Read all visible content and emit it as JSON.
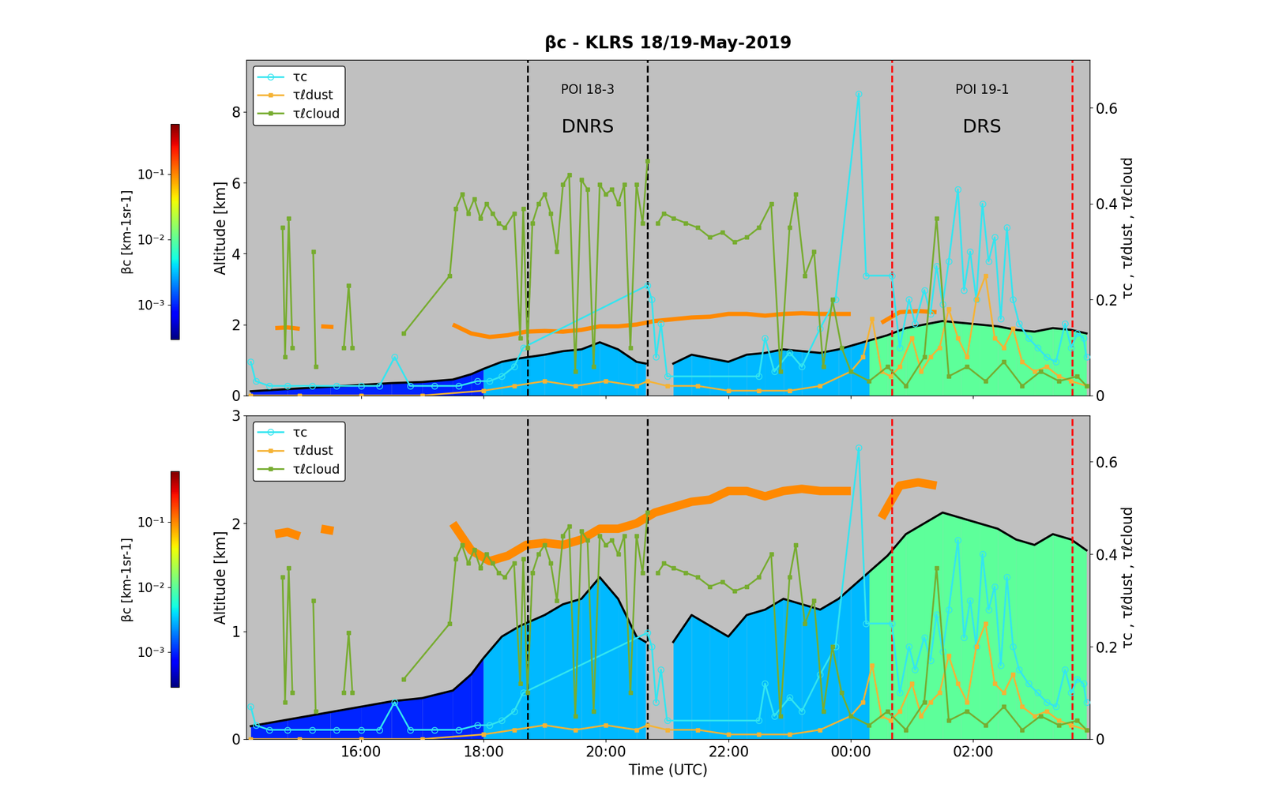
{
  "chart_data": {
    "type": "line",
    "title": "βc - KLRS 18/19-May-2019",
    "x_label": "Time (UTC)",
    "y_label": "Altitude [km]",
    "y2_label": "τc , τℓdust , τℓcloud",
    "xlim": [
      14.13,
      27.9
    ],
    "xticks": [
      {
        "value": 16,
        "label": "16:00"
      },
      {
        "value": 18,
        "label": "18:00"
      },
      {
        "value": 20,
        "label": "20:00"
      },
      {
        "value": 22,
        "label": "22:00"
      },
      {
        "value": 24,
        "label": "00:00"
      },
      {
        "value": 26,
        "label": "02:00"
      }
    ],
    "y2lim": [
      0,
      0.7
    ],
    "y2ticks": [
      0,
      0.2,
      0.4,
      0.6
    ],
    "legend": "upper left",
    "colorbar": {
      "label": "βc [km-1sr-1]",
      "range": [
        0.00029,
        0.6
      ],
      "ticks": [
        {
          "value": 0.001,
          "label": "10⁻³"
        },
        {
          "value": 0.01,
          "label": "10⁻²"
        },
        {
          "value": 0.1,
          "label": "10⁻¹"
        }
      ]
    },
    "panels": [
      {
        "ylim": [
          0,
          9.46
        ],
        "yticks": [
          0,
          2,
          4,
          6,
          8
        ],
        "tick_labels": "y"
      },
      {
        "ylim": [
          0,
          3
        ],
        "yticks": [
          0,
          1,
          2,
          3
        ]
      }
    ],
    "periods": [
      {
        "label": "POI 18-3",
        "name": "DNRS",
        "start": 18.72,
        "end": 20.68,
        "color": "black"
      },
      {
        "label": "POI 19-1",
        "name": "DRS",
        "start": 24.67,
        "end": 27.62,
        "color": "red"
      }
    ],
    "aerosol": {
      "color": "black",
      "x": [
        14.2,
        14.8,
        15.5,
        16.0,
        16.5,
        17.0,
        17.5,
        17.8,
        18.0,
        18.3,
        18.6,
        19.0,
        19.3,
        19.6,
        19.9,
        20.2,
        20.5,
        20.65,
        20.75,
        21.1,
        21.4,
        21.7,
        22.0,
        22.3,
        22.6,
        22.9,
        23.2,
        23.5,
        23.8,
        24.0,
        24.3,
        24.6,
        24.9,
        25.2,
        25.5,
        25.8,
        26.1,
        26.4,
        26.7,
        27.0,
        27.3,
        27.6,
        27.85
      ],
      "values": [
        0.12,
        0.18,
        0.25,
        0.3,
        0.35,
        0.38,
        0.45,
        0.6,
        0.75,
        0.95,
        1.05,
        1.15,
        1.25,
        1.3,
        1.5,
        1.3,
        0.95,
        0.9,
        null,
        0.9,
        1.15,
        1.05,
        0.95,
        1.15,
        1.2,
        1.3,
        1.25,
        1.2,
        1.3,
        1.4,
        1.55,
        1.7,
        1.9,
        2.0,
        2.1,
        2.05,
        2.0,
        1.95,
        1.85,
        1.8,
        1.9,
        1.85,
        1.75
      ],
      "beta": [
        0.001,
        0.001,
        0.001,
        0.001,
        0.001,
        0.001,
        0.001,
        0.001,
        0.003,
        0.003,
        0.003,
        0.003,
        0.003,
        0.003,
        0.003,
        0.003,
        0.003,
        0.003,
        null,
        0.003,
        0.003,
        0.003,
        0.003,
        0.003,
        0.003,
        0.003,
        0.003,
        0.003,
        0.003,
        0.003,
        0.01,
        0.01,
        0.01,
        0.01,
        0.01,
        0.01,
        0.01,
        0.01,
        0.01,
        0.01,
        0.01,
        0.01,
        0.01
      ]
    },
    "cloud_layer": {
      "beta": 0.1,
      "x": [
        14.6,
        14.8,
        15.0,
        15.1,
        15.35,
        15.55,
        15.6,
        17.5,
        17.8,
        18.1,
        18.4,
        18.7,
        19.0,
        19.3,
        19.6,
        19.9,
        20.2,
        20.5,
        20.8,
        21.1,
        21.4,
        21.7,
        22.0,
        22.3,
        22.6,
        22.9,
        23.2,
        23.5,
        23.8,
        24.0,
        24.1,
        24.5,
        24.8,
        25.1,
        25.4
      ],
      "values": [
        1.9,
        1.92,
        1.88,
        null,
        1.95,
        1.93,
        null,
        2.0,
        1.75,
        1.65,
        1.7,
        1.8,
        1.82,
        1.8,
        1.85,
        1.95,
        1.95,
        2.0,
        2.1,
        2.15,
        2.2,
        2.22,
        2.3,
        2.3,
        2.25,
        2.3,
        2.32,
        2.3,
        2.3,
        2.3,
        null,
        2.05,
        2.35,
        2.38,
        2.35
      ]
    },
    "series": [
      {
        "name": "τc",
        "color": "#33e5f0",
        "marker": "circle",
        "axis": "y2",
        "x": [
          14.2,
          14.28,
          14.5,
          14.8,
          15.2,
          15.6,
          16.0,
          16.3,
          16.55,
          16.8,
          17.2,
          17.6,
          17.9,
          18.1,
          18.3,
          18.5,
          18.65,
          20.68,
          20.75,
          20.82,
          20.9,
          21.0,
          22.5,
          22.6,
          22.75,
          23.0,
          23.2,
          23.5,
          23.75,
          24.13,
          24.25,
          24.67,
          24.8,
          24.95,
          25.05,
          25.2,
          25.3,
          25.4,
          25.5,
          25.6,
          25.75,
          25.85,
          25.95,
          26.05,
          26.15,
          26.25,
          26.35,
          26.45,
          26.55,
          26.65,
          26.75,
          26.9,
          27.05,
          27.2,
          27.35,
          27.5,
          27.6,
          27.7,
          27.8,
          27.85
        ],
        "values": [
          0.07,
          0.03,
          0.02,
          0.02,
          0.02,
          0.02,
          0.02,
          0.02,
          0.08,
          0.02,
          0.02,
          0.02,
          0.03,
          0.03,
          0.04,
          0.06,
          0.1,
          0.23,
          0.2,
          0.08,
          0.15,
          0.04,
          0.04,
          0.12,
          0.05,
          0.09,
          0.06,
          0.14,
          0.2,
          0.63,
          0.25,
          0.25,
          0.1,
          0.2,
          0.15,
          0.22,
          0.17,
          0.27,
          0.19,
          0.28,
          0.43,
          0.22,
          0.3,
          0.2,
          0.4,
          0.28,
          0.33,
          0.16,
          0.35,
          0.2,
          0.15,
          0.12,
          0.1,
          0.08,
          0.07,
          0.15,
          0.1,
          0.13,
          0.12,
          0.08
        ]
      },
      {
        "name": "τℓdust",
        "color": "#f5b335",
        "marker": "square",
        "axis": "y2",
        "x": [
          14.2,
          15.0,
          16.0,
          17.0,
          18.0,
          18.5,
          19.0,
          19.5,
          20.0,
          20.5,
          20.68,
          21.0,
          21.5,
          22.0,
          22.5,
          23.0,
          23.5,
          24.0,
          24.2,
          24.35,
          24.5,
          24.65,
          24.8,
          25.0,
          25.15,
          25.3,
          25.45,
          25.6,
          25.75,
          25.9,
          26.05,
          26.2,
          26.35,
          26.5,
          26.65,
          26.8,
          27.0,
          27.2,
          27.4,
          27.6,
          27.85
        ],
        "values": [
          0,
          0,
          0,
          0,
          0.01,
          0.02,
          0.03,
          0.02,
          0.03,
          0.02,
          0.03,
          0.02,
          0.02,
          0.01,
          0.01,
          0.01,
          0.02,
          0.05,
          0.08,
          0.16,
          0.05,
          0.04,
          0.06,
          0.12,
          0.05,
          0.08,
          0.1,
          0.18,
          0.12,
          0.08,
          0.2,
          0.25,
          0.12,
          0.1,
          0.14,
          0.07,
          0.05,
          0.06,
          0.04,
          0.03,
          0.02
        ]
      },
      {
        "name": "τℓcloud",
        "color": "#77ac30",
        "marker": "square",
        "axis": "y2",
        "x": [
          14.72,
          14.76,
          14.82,
          14.88,
          15.0,
          15.22,
          15.26,
          15.3,
          15.72,
          15.8,
          15.86,
          16.2,
          16.7,
          17.45,
          17.55,
          17.65,
          17.75,
          17.85,
          17.95,
          18.05,
          18.15,
          18.25,
          18.35,
          18.5,
          18.6,
          18.65,
          18.72,
          18.8,
          18.9,
          19.0,
          19.1,
          19.2,
          19.3,
          19.4,
          19.5,
          19.6,
          19.7,
          19.8,
          19.9,
          20.0,
          20.1,
          20.2,
          20.3,
          20.4,
          20.5,
          20.6,
          20.68,
          20.75,
          20.85,
          20.95,
          21.1,
          21.3,
          21.5,
          21.7,
          21.9,
          22.1,
          22.3,
          22.5,
          22.7,
          22.85,
          23.0,
          23.1,
          23.25,
          23.4,
          23.55,
          23.7,
          23.85,
          24.0,
          24.3,
          24.6,
          24.9,
          25.2,
          25.4,
          25.6,
          25.9,
          26.2,
          26.5,
          26.8,
          27.1,
          27.4,
          27.7,
          27.85
        ],
        "values": [
          0.35,
          0.08,
          0.37,
          0.1,
          null,
          0.3,
          0.06,
          null,
          0.1,
          0.23,
          0.1,
          null,
          0.13,
          0.25,
          0.39,
          0.42,
          0.38,
          0.41,
          0.37,
          0.4,
          0.38,
          0.36,
          0.35,
          0.38,
          0.12,
          0.39,
          0.1,
          0.36,
          0.4,
          0.42,
          0.38,
          0.3,
          0.44,
          0.46,
          0.05,
          0.45,
          0.43,
          0.06,
          0.44,
          0.42,
          0.43,
          0.4,
          0.44,
          0.1,
          0.44,
          0.36,
          0.49,
          null,
          0.36,
          0.38,
          0.37,
          0.36,
          0.35,
          0.33,
          0.34,
          0.32,
          0.33,
          0.35,
          0.4,
          0.05,
          0.35,
          0.42,
          0.25,
          0.3,
          0.06,
          0.2,
          0.1,
          0.05,
          0.03,
          0.06,
          0.02,
          0.08,
          0.37,
          0.04,
          0.06,
          0.03,
          0.07,
          0.02,
          0.05,
          0.03,
          0.04,
          0.02
        ]
      }
    ]
  }
}
